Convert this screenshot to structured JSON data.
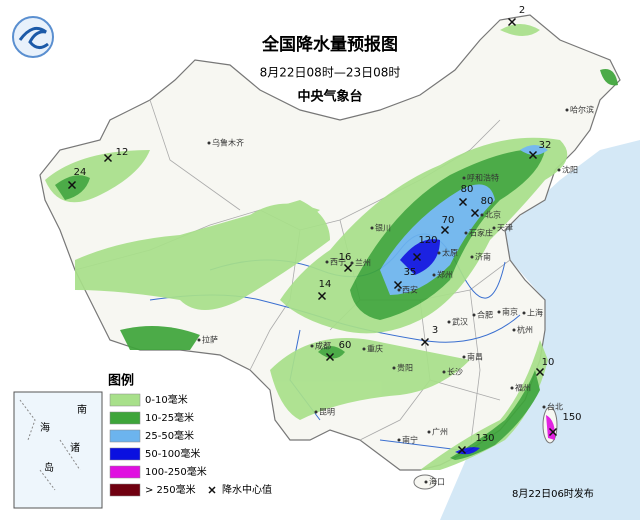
{
  "header": {
    "title": "全国降水量预报图",
    "period": "8月22日08时—23日08时",
    "agency": "中央气象台"
  },
  "centers": [
    2,
    24,
    12,
    32,
    80,
    80,
    70,
    120,
    35,
    16,
    14,
    60,
    3,
    10,
    130,
    150
  ],
  "cities": [
    "乌鲁木齐",
    "哈尔滨",
    "沈阳",
    "呼和浩特",
    "北京",
    "天津",
    "石家庄",
    "太原",
    "银川",
    "西宁",
    "兰州",
    "郑州",
    "济南",
    "西安",
    "拉萨",
    "成都",
    "重庆",
    "武汉",
    "合肥",
    "南京",
    "上海",
    "杭州",
    "南昌",
    "长沙",
    "福州",
    "台北",
    "贵阳",
    "昆明",
    "南宁",
    "广州",
    "海口"
  ],
  "legend": {
    "title": "图例",
    "items": [
      {
        "label": "0-10毫米",
        "color": "#a8e08a"
      },
      {
        "label": "10-25毫米",
        "color": "#3ea53a"
      },
      {
        "label": "25-50毫米",
        "color": "#6cb4ee"
      },
      {
        "label": "50-100毫米",
        "color": "#0a10e0"
      },
      {
        "label": "100-250毫米",
        "color": "#e010e0"
      },
      {
        "label": "> 250毫米",
        "color": "#700010"
      }
    ],
    "center_label": "降水中心值"
  },
  "inset": [
    "南",
    "海",
    "诸",
    "岛"
  ],
  "issued": "8月22日06时发布"
}
